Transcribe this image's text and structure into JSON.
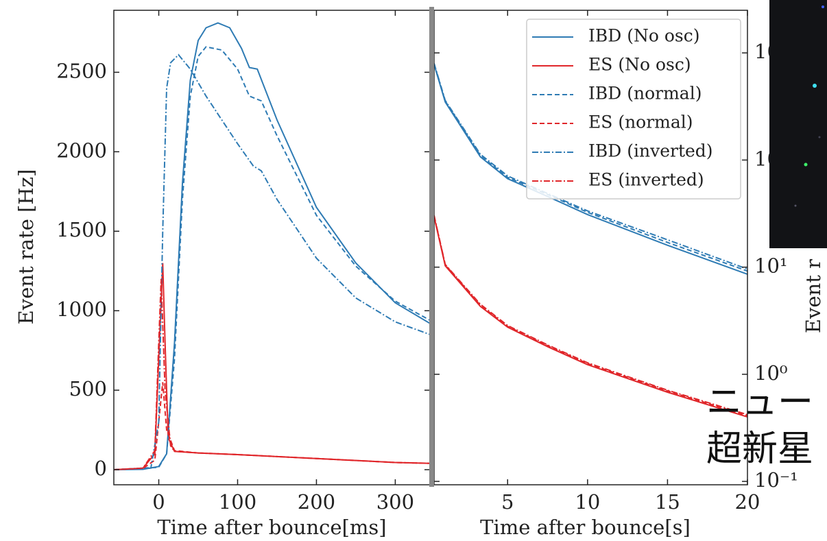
{
  "chart_data": [
    {
      "type": "line",
      "x_label": "Time after bounce[ms]",
      "y_label": "Event rate [Hz]",
      "xlim": [
        -57,
        344
      ],
      "ylim": [
        -95,
        2890
      ],
      "xticks": [
        0,
        100,
        200,
        300
      ],
      "yticks": [
        0,
        500,
        1000,
        1500,
        2000,
        2500
      ],
      "series": [
        {
          "name": "IBD (No osc)",
          "color": "#2e7bb4",
          "linestyle": "solid",
          "x": [
            -57,
            -20,
            0,
            10,
            20,
            30,
            40,
            50,
            60,
            75,
            90,
            105,
            115,
            125,
            150,
            200,
            250,
            300,
            344
          ],
          "values": [
            0,
            2,
            20,
            100,
            800,
            1800,
            2450,
            2700,
            2780,
            2810,
            2780,
            2650,
            2530,
            2520,
            2200,
            1650,
            1300,
            1050,
            920
          ]
        },
        {
          "name": "ES (No osc)",
          "color": "#e0262a",
          "linestyle": "solid",
          "x": [
            -57,
            -20,
            -5,
            0,
            5,
            8,
            12,
            20,
            50,
            100,
            200,
            300,
            344
          ],
          "values": [
            0,
            10,
            100,
            700,
            1300,
            800,
            200,
            115,
            105,
            95,
            70,
            45,
            40
          ]
        },
        {
          "name": "IBD (normal)",
          "color": "#2e7bb4",
          "linestyle": "dashed",
          "x": [
            -57,
            0,
            10,
            20,
            30,
            40,
            50,
            60,
            80,
            100,
            115,
            130,
            150,
            200,
            250,
            300,
            344
          ],
          "values": [
            0,
            15,
            100,
            700,
            1700,
            2350,
            2600,
            2660,
            2640,
            2520,
            2350,
            2320,
            2100,
            1600,
            1280,
            1060,
            940
          ]
        },
        {
          "name": "ES (normal)",
          "color": "#e0262a",
          "linestyle": "dashed",
          "x": [
            -57,
            -20,
            -5,
            0,
            5,
            10,
            20,
            50,
            100,
            200,
            300,
            344
          ],
          "values": [
            0,
            8,
            60,
            300,
            550,
            250,
            120,
            105,
            95,
            70,
            45,
            40
          ]
        },
        {
          "name": "IBD (inverted)",
          "color": "#2e7bb4",
          "linestyle": "dashdot",
          "x": [
            -57,
            -10,
            0,
            5,
            10,
            15,
            25,
            40,
            60,
            100,
            120,
            130,
            150,
            200,
            250,
            300,
            344
          ],
          "values": [
            0,
            10,
            300,
            1500,
            2400,
            2560,
            2610,
            2520,
            2350,
            2050,
            1910,
            1880,
            1700,
            1330,
            1080,
            930,
            850
          ]
        },
        {
          "name": "ES (inverted)",
          "color": "#e0262a",
          "linestyle": "dashdot",
          "x": [
            -57,
            -20,
            -5,
            0,
            3,
            8,
            15,
            20,
            50,
            100,
            200,
            300,
            344
          ],
          "values": [
            0,
            10,
            120,
            800,
            1200,
            500,
            150,
            115,
            105,
            95,
            70,
            45,
            40
          ]
        }
      ]
    },
    {
      "type": "line",
      "x_label": "Time after bounce[s]",
      "y_label": "Event r",
      "log_y": true,
      "y_axis_side": "right",
      "legend": "upper right",
      "xlim": [
        0.4,
        20
      ],
      "ylim": [
        0.093,
        2500
      ],
      "xticks": [
        5,
        10,
        15,
        20
      ],
      "yticks": [
        {
          "value": 0.1,
          "label": "10⁻¹"
        },
        {
          "value": 1,
          "label": "10⁰"
        },
        {
          "value": 10,
          "label": "10¹"
        },
        {
          "value": 100,
          "label": "10²"
        },
        {
          "value": 1000,
          "label": "10³"
        }
      ],
      "series": [
        {
          "name": "IBD (No osc)",
          "color": "#2e7bb4",
          "linestyle": "solid",
          "x": [
            0.4,
            1.1,
            3.3,
            5,
            7.6,
            10,
            15,
            20
          ],
          "values": [
            780,
            348,
            107,
            67,
            45,
            31,
            16,
            8.6
          ]
        },
        {
          "name": "ES (No osc)",
          "color": "#e0262a",
          "linestyle": "solid",
          "x": [
            0.4,
            1.1,
            3.3,
            5,
            7.6,
            10,
            15,
            20
          ],
          "values": [
            29.6,
            10.3,
            4.3,
            2.75,
            1.78,
            1.23,
            0.68,
            0.4
          ]
        },
        {
          "name": "IBD (normal)",
          "color": "#2e7bb4",
          "linestyle": "dashed",
          "x": [
            0.4,
            1.1,
            3.3,
            5,
            7.6,
            10,
            15,
            20
          ],
          "values": [
            790,
            355,
            110,
            69,
            47,
            32.5,
            17,
            9.2
          ]
        },
        {
          "name": "ES (normal)",
          "color": "#e0262a",
          "linestyle": "dashed",
          "x": [
            0.4,
            1.1,
            3.3,
            5,
            7.6,
            10,
            15,
            20
          ],
          "values": [
            30,
            10.5,
            4.4,
            2.8,
            1.82,
            1.26,
            0.7,
            0.41
          ]
        },
        {
          "name": "IBD (inverted)",
          "color": "#2e7bb4",
          "linestyle": "dashdot",
          "x": [
            0.4,
            1.1,
            3.3,
            5,
            7.6,
            10,
            15,
            20
          ],
          "values": [
            800,
            360,
            113,
            71,
            48,
            33.5,
            18,
            9.6
          ]
        },
        {
          "name": "ES (inverted)",
          "color": "#e0262a",
          "linestyle": "dashdot",
          "x": [
            0.4,
            1.1,
            3.3,
            5,
            7.6,
            10,
            15,
            20
          ],
          "values": [
            30.5,
            10.6,
            4.5,
            2.85,
            1.85,
            1.28,
            0.71,
            0.42
          ]
        }
      ]
    }
  ],
  "overlay": {
    "lines": [
      "ニュー",
      "超新星"
    ]
  }
}
